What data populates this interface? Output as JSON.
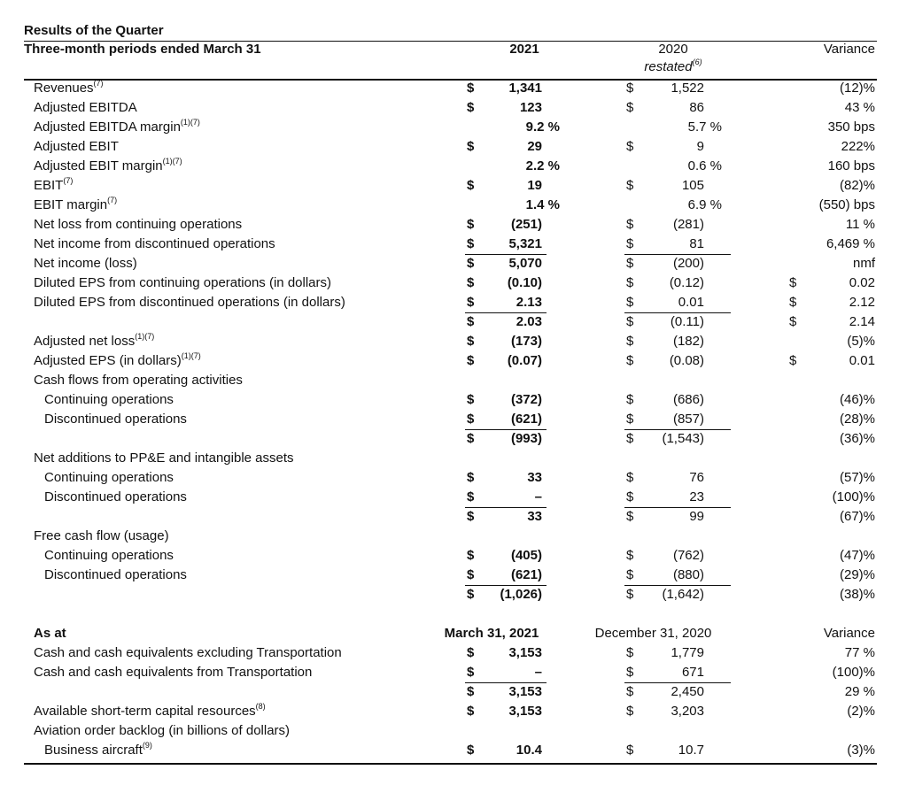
{
  "header": {
    "title": "Results of the Quarter",
    "period": "Three-month periods ended March 31",
    "col2021": "2021",
    "col2020": "2020",
    "restated": "restated",
    "restated_note": "(6)",
    "variance": "Variance"
  },
  "rows": [
    {
      "label": "Revenues",
      "note": "(7)",
      "c1": "$",
      "v1": "1,341",
      "c2": "$",
      "v2": "1,522",
      "v3": "(12)%"
    },
    {
      "label": "Adjusted EBITDA",
      "c1": "$",
      "v1": "123",
      "c2": "$",
      "v2": "86",
      "v3": "43 %"
    },
    {
      "label": "Adjusted EBITDA margin",
      "note": "(1)(7)",
      "v1": "9.2 %",
      "v2": "5.7 %",
      "v3": "350 bps"
    },
    {
      "label": "Adjusted EBIT",
      "c1": "$",
      "v1": "29",
      "c2": "$",
      "v2": "9",
      "v3": "222%"
    },
    {
      "label": "Adjusted EBIT margin",
      "note": "(1)(7)",
      "v1": "2.2 %",
      "v2": "0.6 %",
      "v3": "160 bps"
    },
    {
      "label": "EBIT",
      "note": "(7)",
      "c1": "$",
      "v1": "19",
      "c2": "$",
      "v2": "105",
      "v3": "(82)%"
    },
    {
      "label": "EBIT margin",
      "note": "(7)",
      "v1": "1.4 %",
      "v2": "6.9 %",
      "v3": "(550) bps"
    },
    {
      "label": "Net loss from continuing operations",
      "c1": "$",
      "v1": "(251)",
      "c2": "$",
      "v2": "(281)",
      "v3": "11 %"
    },
    {
      "label": "Net income from discontinued operations",
      "c1": "$",
      "v1": "5,321",
      "c2": "$",
      "v2": "81",
      "v3": "6,469 %",
      "underline": true
    },
    {
      "label": "Net income (loss)",
      "c1": "$",
      "v1": "5,070",
      "c2": "$",
      "v2": "(200)",
      "v3": "nmf"
    },
    {
      "label": "Diluted EPS from continuing operations (in dollars)",
      "c1": "$",
      "v1": "(0.10)",
      "c2": "$",
      "v2": "(0.12)",
      "c3": "$",
      "v3": "0.02"
    },
    {
      "label": "Diluted EPS from discontinued operations (in dollars)",
      "c1": "$",
      "v1": "2.13",
      "c2": "$",
      "v2": "0.01",
      "c3": "$",
      "v3": "2.12",
      "underline": true
    },
    {
      "c1": "$",
      "v1": "2.03",
      "c2": "$",
      "v2": "(0.11)",
      "c3": "$",
      "v3": "2.14"
    },
    {
      "label": "Adjusted net loss",
      "note": "(1)(7)",
      "c1": "$",
      "v1": "(173)",
      "c2": "$",
      "v2": "(182)",
      "v3": "(5)%"
    },
    {
      "label": "Adjusted EPS (in dollars)",
      "note": "(1)(7)",
      "c1": "$",
      "v1": "(0.07)",
      "c2": "$",
      "v2": "(0.08)",
      "c3": "$",
      "v3": "0.01"
    },
    {
      "label": "Cash flows from operating activities"
    },
    {
      "label": "Continuing operations",
      "indent": true,
      "c1": "$",
      "v1": "(372)",
      "c2": "$",
      "v2": "(686)",
      "v3": "(46)%"
    },
    {
      "label": "Discontinued operations",
      "indent": true,
      "c1": "$",
      "v1": "(621)",
      "c2": "$",
      "v2": "(857)",
      "v3": "(28)%",
      "underline": true
    },
    {
      "c1": "$",
      "v1": "(993)",
      "c2": "$",
      "v2": "(1,543)",
      "v3": "(36)%"
    },
    {
      "label": "Net additions to PP&E and intangible assets"
    },
    {
      "label": "Continuing operations",
      "indent": true,
      "c1": "$",
      "v1": "33",
      "c2": "$",
      "v2": "76",
      "v3": "(57)%"
    },
    {
      "label": "Discontinued operations",
      "indent": true,
      "c1": "$",
      "v1": "–",
      "c2": "$",
      "v2": "23",
      "v3": "(100)%",
      "underline": true
    },
    {
      "c1": "$",
      "v1": "33",
      "c2": "$",
      "v2": "99",
      "v3": "(67)%"
    },
    {
      "label": "Free cash flow (usage)"
    },
    {
      "label": "Continuing operations",
      "indent": true,
      "c1": "$",
      "v1": "(405)",
      "c2": "$",
      "v2": "(762)",
      "v3": "(47)%"
    },
    {
      "label": "Discontinued operations",
      "indent": true,
      "c1": "$",
      "v1": "(621)",
      "c2": "$",
      "v2": "(880)",
      "v3": "(29)%",
      "underline": true
    },
    {
      "c1": "$",
      "v1": "(1,026)",
      "c2": "$",
      "v2": "(1,642)",
      "v3": "(38)%"
    }
  ],
  "balance": {
    "header": {
      "label": "As at",
      "col1": "March 31, 2021",
      "col2": "December 31, 2020",
      "variance": "Variance"
    },
    "rows": [
      {
        "label": "Cash and cash equivalents excluding Transportation",
        "c1": "$",
        "v1": "3,153",
        "c2": "$",
        "v2": "1,779",
        "v3": "77 %"
      },
      {
        "label": "Cash and cash equivalents from Transportation",
        "c1": "$",
        "v1": "–",
        "c2": "$",
        "v2": "671",
        "v3": "(100)%",
        "underline": true
      },
      {
        "c1": "$",
        "v1": "3,153",
        "c2": "$",
        "v2": "2,450",
        "v3": "29 %"
      },
      {
        "label": "Available short-term capital resources",
        "note": "(8)",
        "c1": "$",
        "v1": "3,153",
        "c2": "$",
        "v2": "3,203",
        "v3": "(2)%"
      },
      {
        "label": "Aviation order backlog (in billions of dollars)"
      },
      {
        "label": "Business aircraft",
        "note": "(9)",
        "indent": true,
        "c1": "$",
        "v1": "10.4",
        "c2": "$",
        "v2": "10.7",
        "v3": "(3)%"
      }
    ]
  }
}
